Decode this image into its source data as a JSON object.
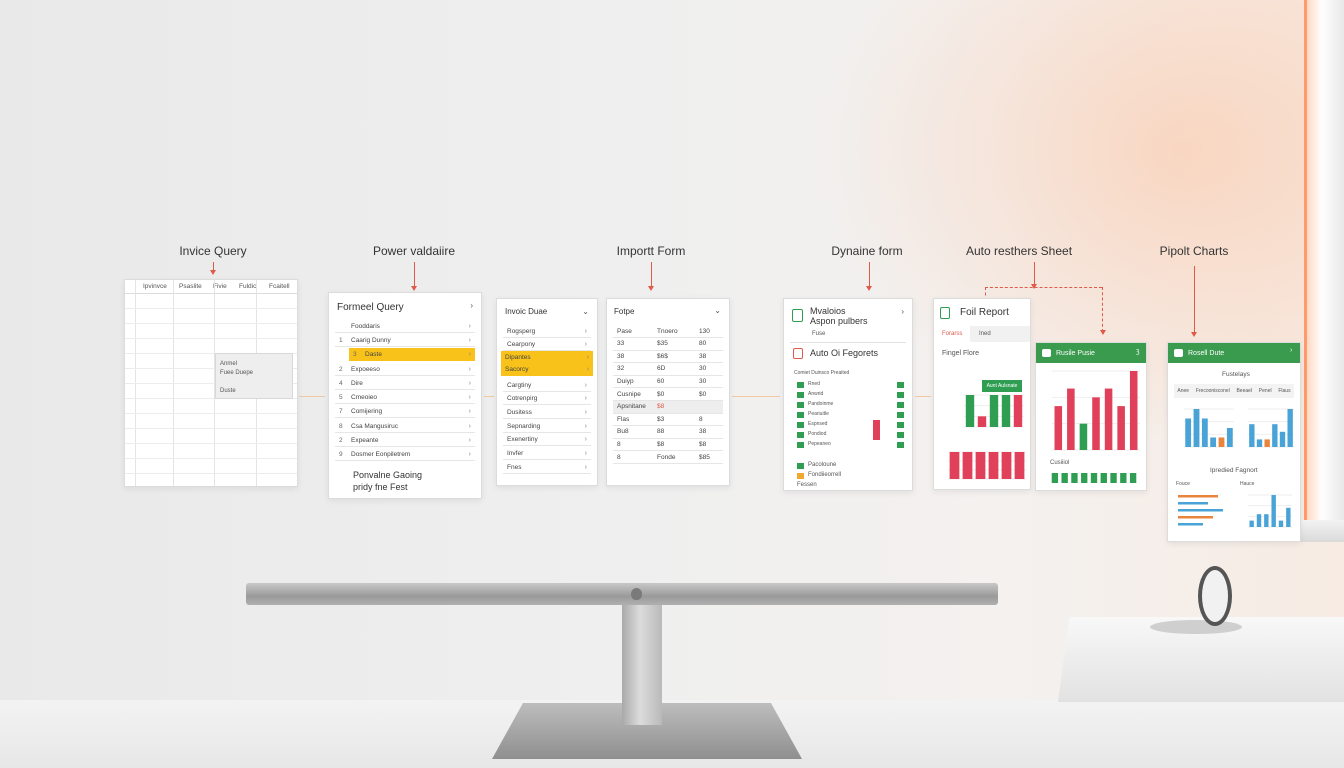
{
  "stages": {
    "invoice_query": "Invice Query",
    "power_validation": "Power valdaiire",
    "import_form": "Importt Form",
    "dynamic_form": "Dynaine form",
    "auto_sheet": "Auto resthers Sheet",
    "pivot_charts": "Pipolt Charts"
  },
  "sheet_panel": {
    "headers": [
      "Ipvinvce",
      "Psaslite",
      "Fivie",
      "Fuldic",
      "Fcaitell"
    ],
    "popup_line1": "Anmel",
    "popup_line2": "Fuee Duepe",
    "popup_line3": "Duste"
  },
  "query_panel": {
    "title": "Formeel Query",
    "rows": [
      {
        "num": "",
        "text": "Fooddaris"
      },
      {
        "num": "1",
        "text": "Caarig Dunny"
      },
      {
        "num": "3",
        "text": "Daste"
      },
      {
        "num": "2",
        "text": "Expoeeso"
      },
      {
        "num": "4",
        "text": "Dire"
      },
      {
        "num": "5",
        "text": "Cmeoieo"
      },
      {
        "num": "7",
        "text": "Comijering"
      },
      {
        "num": "8",
        "text": "Csa Mangusiruc"
      },
      {
        "num": "2",
        "text": "Expeante"
      },
      {
        "num": "9",
        "text": "Dosmer Eonpiletrem"
      }
    ],
    "footer_line1": "Ponvalne Gaoing",
    "footer_line2": "pridy fne Fest"
  },
  "invoice_panel": {
    "title": "Invoic Duae",
    "rows": [
      "Rogsperg",
      "Cearpony",
      "Dipantes",
      "Sacorcy",
      "Cargtiny",
      "Cotrenpirg",
      "Dusitess",
      "Sepnarding",
      "Exenertiny",
      "Invfer",
      "Fnes"
    ]
  },
  "import_panel": {
    "title": "Fotpe",
    "rows": [
      [
        "Pase",
        "Tnoero",
        "130"
      ],
      [
        "33",
        "$35",
        "80"
      ],
      [
        "38",
        "$6$",
        "38"
      ],
      [
        "32",
        "6D",
        "30"
      ],
      [
        "Duiyp",
        "60",
        "30"
      ],
      [
        "Cusnipe",
        "$0",
        "$0"
      ],
      [
        "Apsnitane",
        "$8",
        ""
      ],
      [
        "Flas",
        "$3",
        "8"
      ],
      [
        "Bu8",
        "88",
        "38"
      ],
      [
        "8",
        "$8",
        "$8"
      ],
      [
        "8",
        "Fonde",
        "$85"
      ]
    ]
  },
  "dynamic_panel": {
    "title_line1": "Mvaloios",
    "title_line2": "Aspon pulbers",
    "subtitle": "Fuse",
    "section": "Auto Oi Fegorets",
    "table_header": "Comiet Duinsco Preaited",
    "rows": [
      "Rned",
      "Anwrid",
      "Pandoinme",
      "Peariuitle",
      "Espnsed",
      "Pondiod",
      "Pepeaneo"
    ],
    "footer": [
      "Pacoloune",
      "Fondiieorrell",
      "Fessen"
    ]
  },
  "report_panel": {
    "title": "Foil Report",
    "tab1": "Forarss",
    "tab2": "Ined",
    "section": "Fingel Flore",
    "badge": "Aunt Aulsnate"
  },
  "auto_panel": {
    "header": "Rusile Pusie",
    "chart_label": "Cusiiiol"
  },
  "pivot_panel": {
    "header": "Rosell Dute",
    "title": "Fustelays",
    "cols": [
      "Anee",
      "Frecoonisconel",
      "Beeael",
      "Penel",
      "Flaus"
    ],
    "section": "Ipredied Fagnort",
    "bottom_left": "Fouce",
    "bottom_right": "Hauce"
  },
  "colors": {
    "accent_yellow": "#f9c21a",
    "accent_green": "#2f9e52",
    "accent_red": "#e0405a",
    "accent_blue": "#4aa3d6",
    "arrow_red": "#e05a4a"
  }
}
